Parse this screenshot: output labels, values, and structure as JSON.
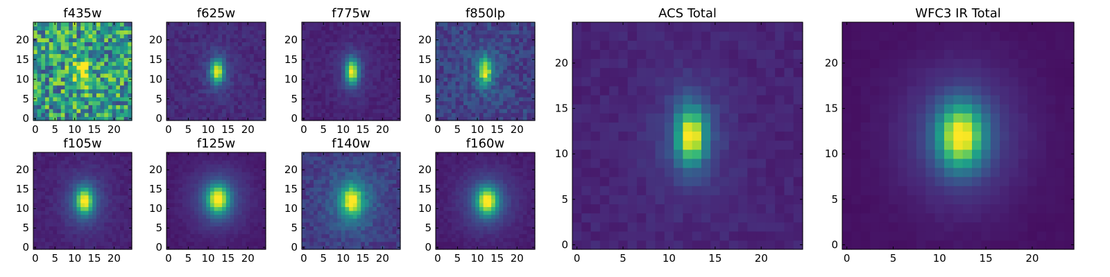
{
  "figure": {
    "colormap": [
      "#440154",
      "#482878",
      "#3e4a89",
      "#31688e",
      "#26828e",
      "#1f9e89",
      "#35b779",
      "#6ece58",
      "#b5de2b",
      "#fde725"
    ]
  },
  "chart_data": [
    {
      "type": "heatmap",
      "title": "f435w",
      "xlim": [
        0,
        24
      ],
      "ylim": [
        0,
        24
      ],
      "xticks": [
        "0",
        "5",
        "10",
        "15",
        "20"
      ],
      "yticks": [
        "0",
        "5",
        "10",
        "15",
        "20"
      ],
      "source": {
        "cx": 12,
        "cy": 12,
        "sx": 1.3,
        "sy": 2.4,
        "peak": 0.35,
        "halo": 0.08,
        "base": 0.6,
        "noise": 0.5,
        "seed": 11
      }
    },
    {
      "type": "heatmap",
      "title": "f625w",
      "xlim": [
        0,
        24
      ],
      "ylim": [
        0,
        24
      ],
      "xticks": [
        "0",
        "5",
        "10",
        "15",
        "20"
      ],
      "yticks": [
        "0",
        "5",
        "10",
        "15",
        "20"
      ],
      "source": {
        "cx": 12.3,
        "cy": 12,
        "sx": 1.1,
        "sy": 2.0,
        "peak": 0.78,
        "halo": 0.12,
        "base": 0.22,
        "noise": 0.18,
        "seed": 23
      }
    },
    {
      "type": "heatmap",
      "title": "f775w",
      "xlim": [
        0,
        24
      ],
      "ylim": [
        0,
        24
      ],
      "xticks": [
        "0",
        "5",
        "10",
        "15",
        "20"
      ],
      "yticks": [
        "0",
        "5",
        "10",
        "15",
        "20"
      ],
      "source": {
        "cx": 12.3,
        "cy": 12,
        "sx": 1.1,
        "sy": 2.2,
        "peak": 0.8,
        "halo": 0.12,
        "base": 0.18,
        "noise": 0.16,
        "seed": 37
      }
    },
    {
      "type": "heatmap",
      "title": "f850lp",
      "xlim": [
        0,
        24
      ],
      "ylim": [
        0,
        24
      ],
      "xticks": [
        "0",
        "5",
        "10",
        "15",
        "20"
      ],
      "yticks": [
        "0",
        "5",
        "10",
        "15",
        "20"
      ],
      "source": {
        "cx": 12,
        "cy": 12,
        "sx": 1.1,
        "sy": 2.2,
        "peak": 0.66,
        "halo": 0.14,
        "base": 0.3,
        "noise": 0.28,
        "seed": 53
      }
    },
    {
      "type": "heatmap",
      "title": "f105w",
      "xlim": [
        0,
        24
      ],
      "ylim": [
        0,
        24
      ],
      "xticks": [
        "0",
        "5",
        "10",
        "15",
        "20"
      ],
      "yticks": [
        "0",
        "5",
        "10",
        "15",
        "20"
      ],
      "source": {
        "cx": 12.5,
        "cy": 12,
        "sx": 1.5,
        "sy": 2.3,
        "peak": 0.78,
        "halo": 0.2,
        "base": 0.18,
        "noise": 0.14,
        "seed": 61
      }
    },
    {
      "type": "heatmap",
      "title": "f125w",
      "xlim": [
        0,
        24
      ],
      "ylim": [
        0,
        24
      ],
      "xticks": [
        "0",
        "5",
        "10",
        "15",
        "20"
      ],
      "yticks": [
        "0",
        "5",
        "10",
        "15",
        "20"
      ],
      "source": {
        "cx": 12.5,
        "cy": 12.5,
        "sx": 1.9,
        "sy": 2.5,
        "peak": 0.8,
        "halo": 0.22,
        "base": 0.14,
        "noise": 0.12,
        "seed": 71
      }
    },
    {
      "type": "heatmap",
      "title": "f140w",
      "xlim": [
        0,
        24
      ],
      "ylim": [
        0,
        24
      ],
      "xticks": [
        "0",
        "5",
        "10",
        "15",
        "20"
      ],
      "yticks": [
        "0",
        "5",
        "10",
        "15",
        "20"
      ],
      "source": {
        "cx": 12.3,
        "cy": 12,
        "sx": 1.7,
        "sy": 2.5,
        "peak": 0.7,
        "halo": 0.26,
        "base": 0.3,
        "noise": 0.2,
        "seed": 83
      }
    },
    {
      "type": "heatmap",
      "title": "f160w",
      "xlim": [
        0,
        24
      ],
      "ylim": [
        0,
        24
      ],
      "xticks": [
        "0",
        "5",
        "10",
        "15",
        "20"
      ],
      "yticks": [
        "0",
        "5",
        "10",
        "15",
        "20"
      ],
      "source": {
        "cx": 12.5,
        "cy": 12,
        "sx": 1.8,
        "sy": 2.4,
        "peak": 0.8,
        "halo": 0.22,
        "base": 0.16,
        "noise": 0.12,
        "seed": 97
      }
    },
    {
      "type": "heatmap",
      "title": "ACS Total",
      "xlim": [
        0,
        24
      ],
      "ylim": [
        0,
        24
      ],
      "xticks": [
        "0",
        "5",
        "10",
        "15",
        "20"
      ],
      "yticks": [
        "0",
        "5",
        "10",
        "15",
        "20"
      ],
      "source": {
        "cx": 12.4,
        "cy": 12,
        "sx": 1.1,
        "sy": 2.1,
        "peak": 0.82,
        "halo": 0.14,
        "base": 0.2,
        "noise": 0.14,
        "seed": 101
      }
    },
    {
      "type": "heatmap",
      "title": "WFC3 IR Total",
      "xlim": [
        0,
        24
      ],
      "ylim": [
        0,
        24
      ],
      "xticks": [
        "0",
        "5",
        "10",
        "15",
        "20"
      ],
      "yticks": [
        "0",
        "5",
        "10",
        "15",
        "20"
      ],
      "source": {
        "cx": 12.3,
        "cy": 12,
        "sx": 1.7,
        "sy": 2.4,
        "peak": 0.82,
        "halo": 0.2,
        "base": 0.1,
        "noise": 0.08,
        "seed": 113
      }
    }
  ]
}
